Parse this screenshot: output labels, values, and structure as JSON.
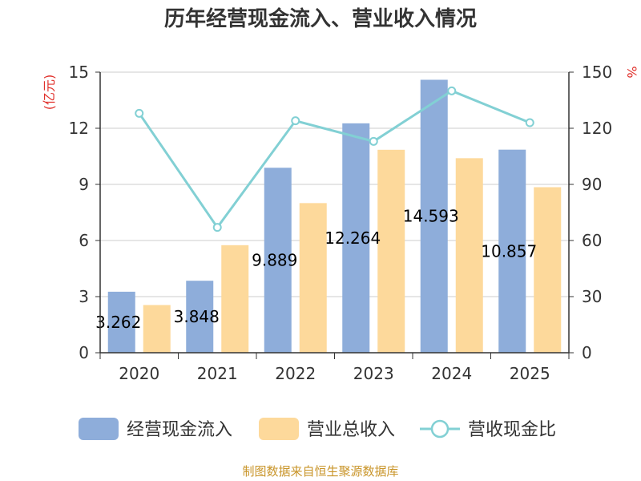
{
  "chart_data": {
    "type": "bar",
    "title": "历年经营现金流入、营业收入情况",
    "categories": [
      "2020",
      "2021",
      "2022",
      "2023",
      "2024",
      "2025"
    ],
    "series": [
      {
        "name": "经营现金流入",
        "kind": "bar",
        "axis": "left",
        "color": "#8eadda",
        "values": [
          3.262,
          3.848,
          9.889,
          12.264,
          14.593,
          10.857
        ],
        "labels": [
          "3.262",
          "3.848",
          "9.889",
          "12.264",
          "14.593",
          "10.857"
        ]
      },
      {
        "name": "营业总收入",
        "kind": "bar",
        "axis": "left",
        "color": "#fdd99b",
        "values": [
          2.55,
          5.75,
          8.0,
          10.85,
          10.4,
          8.85
        ]
      },
      {
        "name": "营收现金比",
        "kind": "line",
        "axis": "right",
        "color": "#82d0d4",
        "values": [
          128,
          67,
          124,
          113,
          140,
          123
        ]
      }
    ],
    "y_left": {
      "unit": "(亿元)",
      "ylim": [
        0,
        15
      ],
      "ticks": [
        "0",
        "3",
        "6",
        "9",
        "12",
        "15"
      ]
    },
    "y_right": {
      "unit": "%",
      "ylim": [
        0,
        150
      ],
      "ticks": [
        "0",
        "30",
        "60",
        "90",
        "120",
        "150"
      ]
    },
    "grid": true,
    "legend_position": "bottom"
  },
  "source_note": "制图数据来自恒生聚源数据库"
}
